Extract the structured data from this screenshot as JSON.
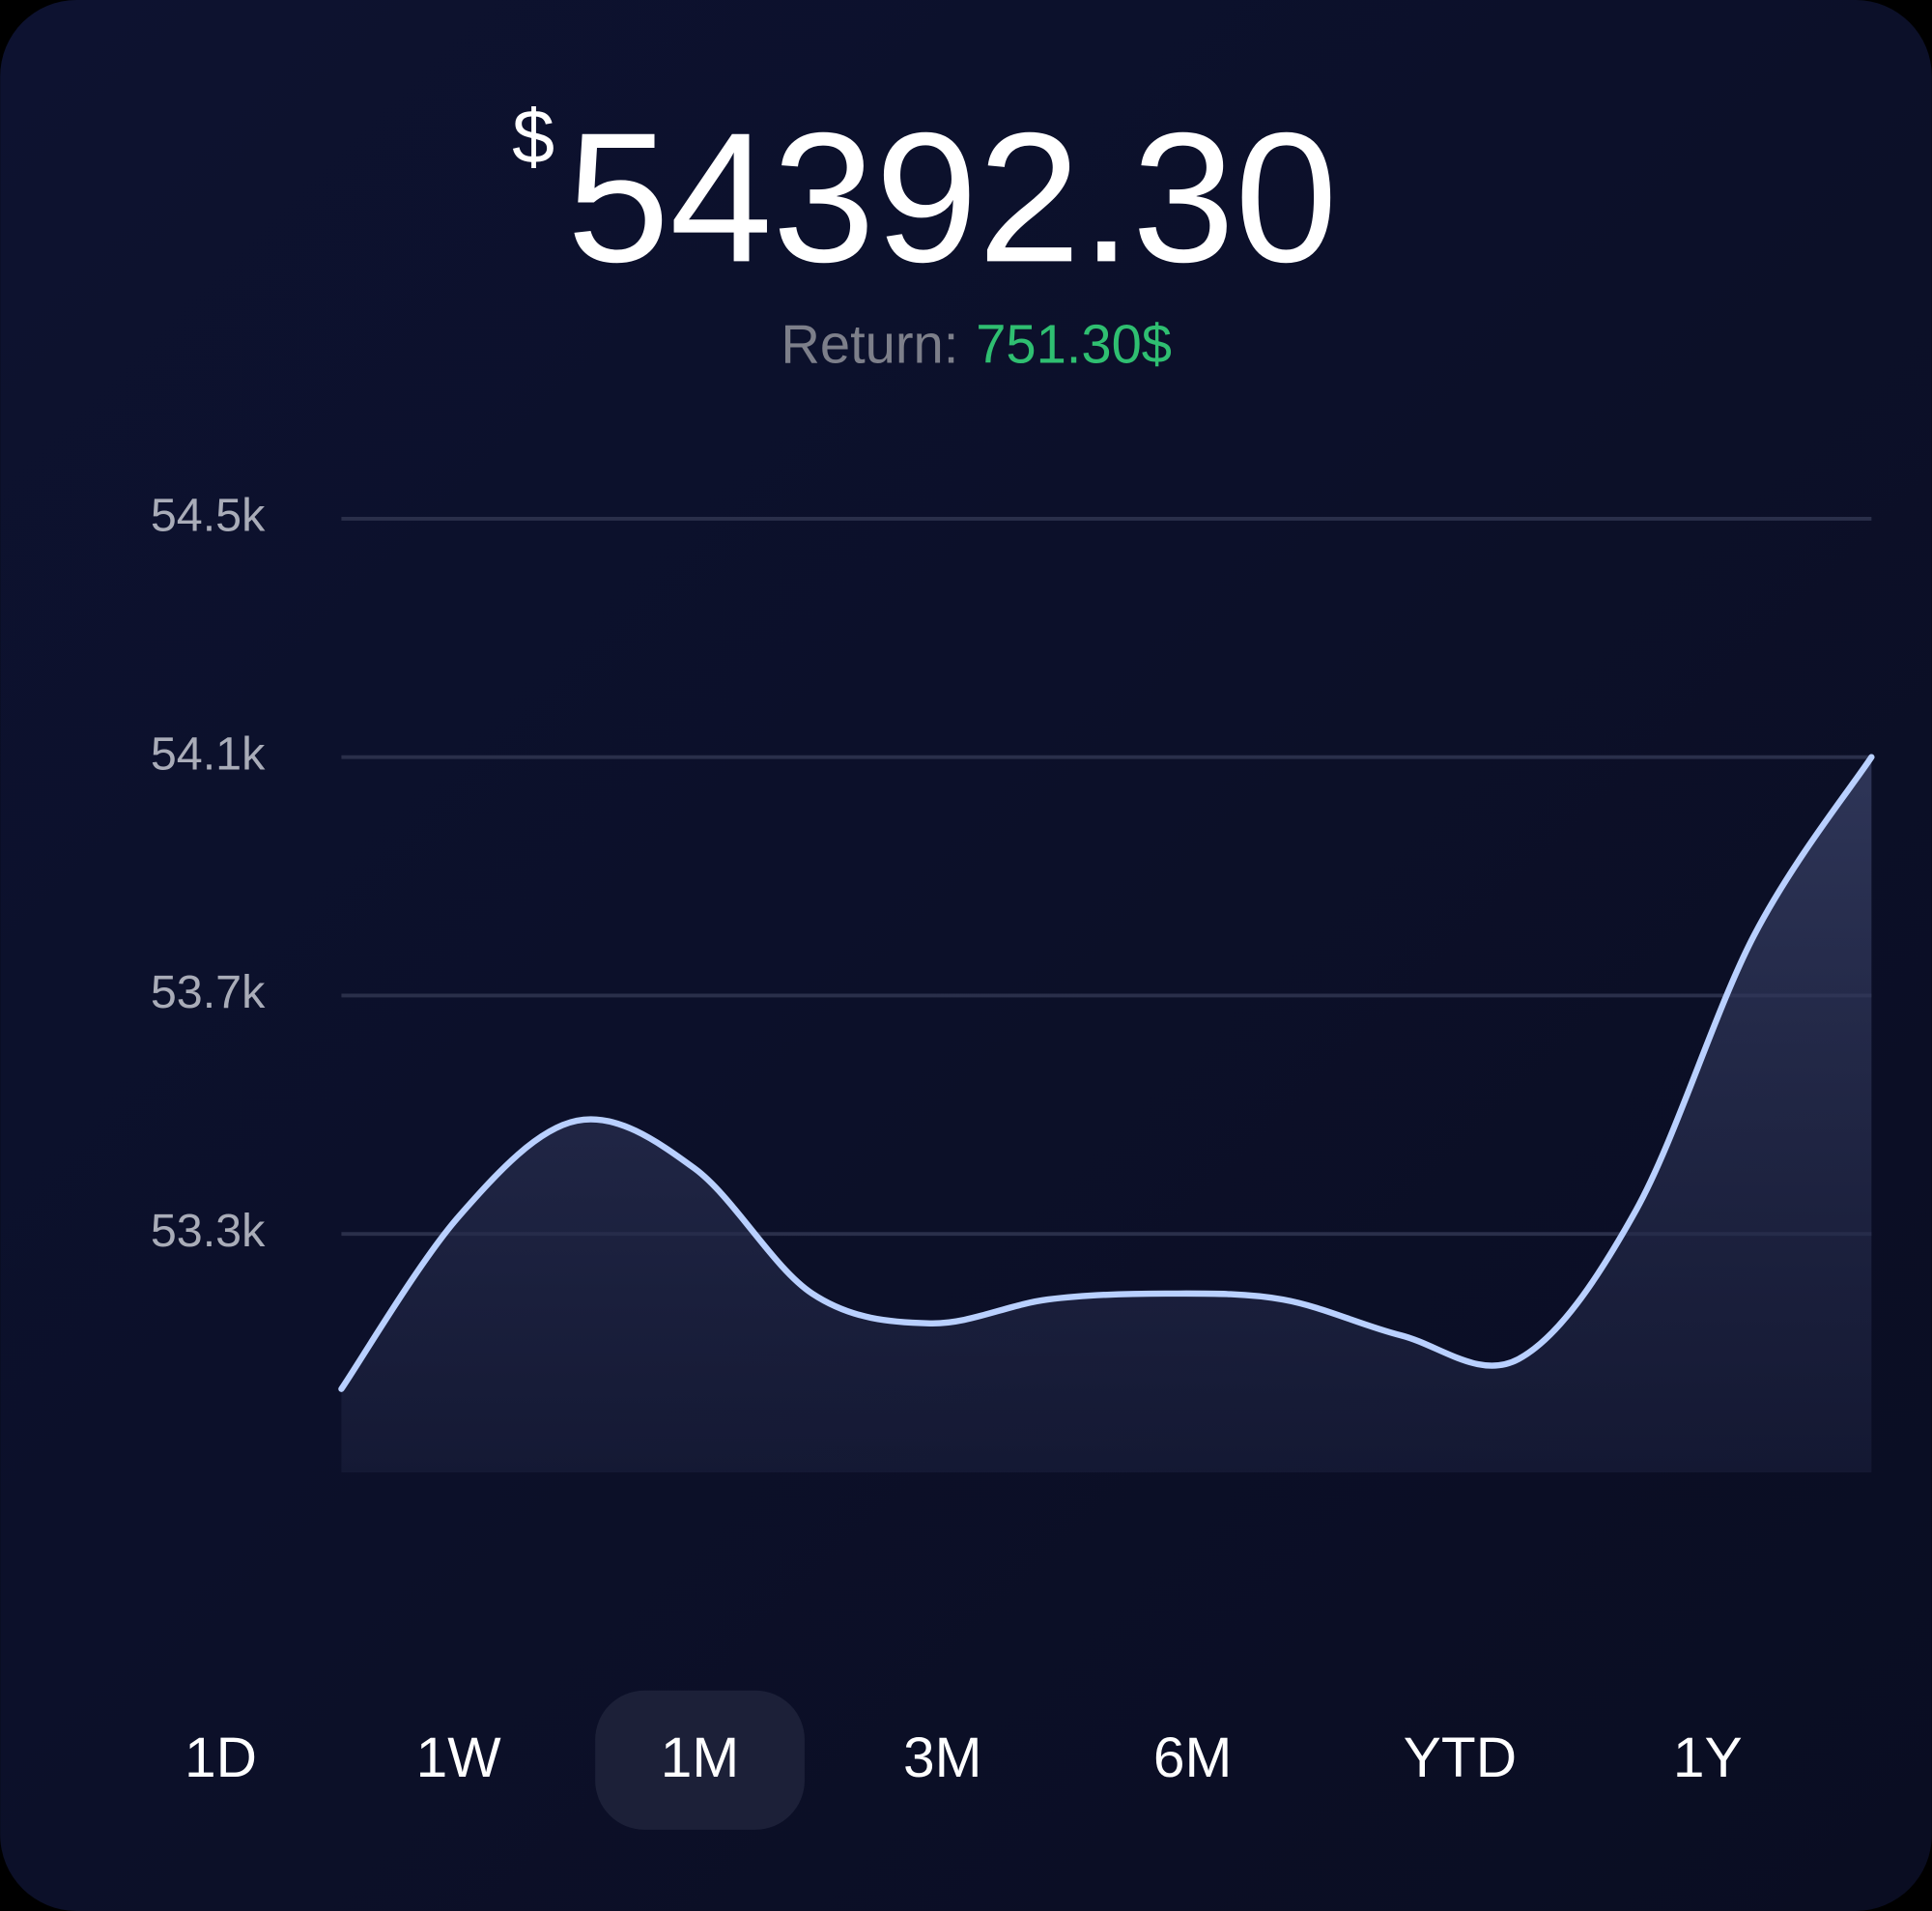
{
  "balance": {
    "currency": "$",
    "amount": "54392.30"
  },
  "return": {
    "label": "Return:",
    "value": "751.30$"
  },
  "chart_data": {
    "type": "area",
    "values": [
      53040,
      53330,
      53490,
      53410,
      53200,
      53150,
      53190,
      53200,
      53190,
      53130,
      53090,
      53340,
      53800,
      54100
    ],
    "color": "#b9d0ff",
    "ylim": [
      52900,
      54500
    ],
    "yticks": [
      {
        "value": 54500,
        "label": "54.5k"
      },
      {
        "value": 54100,
        "label": "54.1k"
      },
      {
        "value": 53700,
        "label": "53.7k"
      },
      {
        "value": 53300,
        "label": "53.3k"
      }
    ],
    "grid": true
  },
  "ranges": [
    "1D",
    "1W",
    "1M",
    "3M",
    "6M",
    "YTD",
    "1Y"
  ],
  "selected_range": 2
}
